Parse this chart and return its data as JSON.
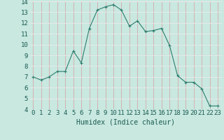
{
  "x": [
    0,
    1,
    2,
    3,
    4,
    5,
    6,
    7,
    8,
    9,
    10,
    11,
    12,
    13,
    14,
    15,
    16,
    17,
    18,
    19,
    20,
    21,
    22,
    23
  ],
  "y": [
    7.0,
    6.7,
    7.0,
    7.5,
    7.5,
    9.4,
    8.3,
    11.5,
    13.2,
    13.5,
    13.7,
    13.2,
    11.7,
    12.2,
    11.2,
    11.3,
    11.5,
    9.9,
    7.1,
    6.5,
    6.5,
    5.9,
    4.3,
    4.3
  ],
  "line_color": "#2e7d6e",
  "marker": "+",
  "marker_color": "#2e7d6e",
  "marker_size": 3,
  "bg_color": "#c8e8e0",
  "hgrid_color": "#e8e8e8",
  "vgrid_color": "#d8b0b0",
  "xlabel": "Humidex (Indice chaleur)",
  "xlim": [
    -0.5,
    23.5
  ],
  "ylim": [
    4,
    14
  ],
  "yticks": [
    4,
    5,
    6,
    7,
    8,
    9,
    10,
    11,
    12,
    13,
    14
  ],
  "xticks": [
    0,
    1,
    2,
    3,
    4,
    5,
    6,
    7,
    8,
    9,
    10,
    11,
    12,
    13,
    14,
    15,
    16,
    17,
    18,
    19,
    20,
    21,
    22,
    23
  ],
  "xlabel_fontsize": 7,
  "tick_fontsize": 6.5,
  "label_color": "#1a5a50"
}
